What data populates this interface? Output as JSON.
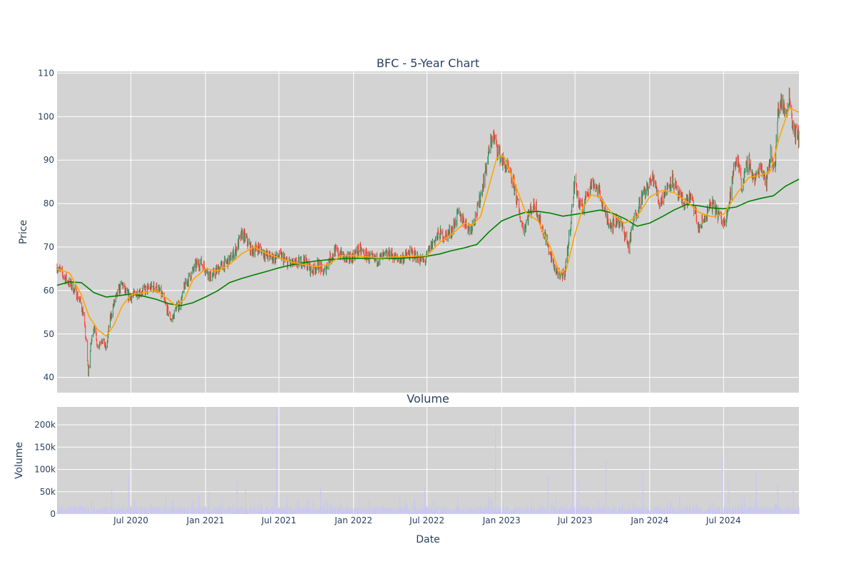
{
  "chart_data": [
    {
      "type": "candlestick",
      "title": "BFC - 5-Year Chart",
      "ylabel": "Price",
      "ylim": [
        36.5,
        110.4
      ],
      "y_ticks": [
        40,
        50,
        60,
        70,
        80,
        90,
        100,
        110
      ],
      "x_tick_labels": [
        "Jul 2020",
        "Jan 2021",
        "Jul 2021",
        "Jan 2022",
        "Jul 2022",
        "Jan 2023",
        "Jul 2023",
        "Jan 2024",
        "Jul 2024"
      ],
      "x_range": [
        "2020-01-01",
        "2025-01-03"
      ],
      "grid": true,
      "background": "#d3d3d3",
      "colors": {
        "up": "#2e8b57",
        "down": "#ff4136",
        "ma_short": "#ffa500",
        "ma_long": "#008000"
      },
      "price_path": [
        [
          "2020-01-01",
          65.5
        ],
        [
          "2020-01-20",
          63.0
        ],
        [
          "2020-02-10",
          60.5
        ],
        [
          "2020-02-25",
          58.0
        ],
        [
          "2020-03-05",
          55.0
        ],
        [
          "2020-03-12",
          49.0
        ],
        [
          "2020-03-18",
          41.0
        ],
        [
          "2020-03-25",
          48.0
        ],
        [
          "2020-04-01",
          52.0
        ],
        [
          "2020-04-10",
          47.0
        ],
        [
          "2020-04-20",
          49.0
        ],
        [
          "2020-05-01",
          46.5
        ],
        [
          "2020-05-10",
          53.0
        ],
        [
          "2020-05-20",
          57.0
        ],
        [
          "2020-06-01",
          60.0
        ],
        [
          "2020-06-10",
          61.5
        ],
        [
          "2020-06-20",
          59.0
        ],
        [
          "2020-07-01",
          58.5
        ],
        [
          "2020-07-15",
          59.5
        ],
        [
          "2020-08-01",
          60.0
        ],
        [
          "2020-08-15",
          60.5
        ],
        [
          "2020-09-01",
          61.0
        ],
        [
          "2020-09-15",
          59.0
        ],
        [
          "2020-10-01",
          55.0
        ],
        [
          "2020-10-10",
          53.0
        ],
        [
          "2020-10-20",
          56.0
        ],
        [
          "2020-11-01",
          57.0
        ],
        [
          "2020-11-10",
          61.0
        ],
        [
          "2020-11-25",
          63.5
        ],
        [
          "2020-12-10",
          66.0
        ],
        [
          "2020-12-20",
          66.5
        ],
        [
          "2021-01-01",
          65.0
        ],
        [
          "2021-01-15",
          63.0
        ],
        [
          "2021-02-01",
          65.0
        ],
        [
          "2021-02-15",
          66.0
        ],
        [
          "2021-03-01",
          67.0
        ],
        [
          "2021-03-15",
          69.0
        ],
        [
          "2021-04-01",
          73.0
        ],
        [
          "2021-04-10",
          72.0
        ],
        [
          "2021-04-25",
          69.0
        ],
        [
          "2021-05-10",
          70.0
        ],
        [
          "2021-06-01",
          68.0
        ],
        [
          "2021-06-20",
          67.5
        ],
        [
          "2021-07-05",
          68.0
        ],
        [
          "2021-07-20",
          66.5
        ],
        [
          "2021-08-10",
          66.0
        ],
        [
          "2021-09-01",
          67.0
        ],
        [
          "2021-09-20",
          64.5
        ],
        [
          "2021-10-05",
          66.0
        ],
        [
          "2021-10-20",
          64.0
        ],
        [
          "2021-11-01",
          67.0
        ],
        [
          "2021-11-15",
          69.0
        ],
        [
          "2021-12-01",
          68.5
        ],
        [
          "2021-12-15",
          67.0
        ],
        [
          "2022-01-01",
          68.0
        ],
        [
          "2022-01-15",
          69.5
        ],
        [
          "2022-02-01",
          68.0
        ],
        [
          "2022-02-20",
          67.0
        ],
        [
          "2022-03-10",
          67.5
        ],
        [
          "2022-04-01",
          68.5
        ],
        [
          "2022-04-20",
          67.0
        ],
        [
          "2022-05-10",
          68.0
        ],
        [
          "2022-05-25",
          68.5
        ],
        [
          "2022-06-10",
          67.5
        ],
        [
          "2022-06-25",
          66.5
        ],
        [
          "2022-07-05",
          69.0
        ],
        [
          "2022-07-15",
          71.0
        ],
        [
          "2022-08-01",
          73.0
        ],
        [
          "2022-08-15",
          72.5
        ],
        [
          "2022-09-01",
          74.0
        ],
        [
          "2022-09-15",
          77.5
        ],
        [
          "2022-10-01",
          76.0
        ],
        [
          "2022-10-15",
          74.0
        ],
        [
          "2022-11-01",
          78.0
        ],
        [
          "2022-11-15",
          84.0
        ],
        [
          "2022-12-01",
          92.0
        ],
        [
          "2022-12-10",
          96.0
        ],
        [
          "2022-12-20",
          93.0
        ],
        [
          "2023-01-01",
          90.0
        ],
        [
          "2023-01-15",
          88.0
        ],
        [
          "2023-02-01",
          84.0
        ],
        [
          "2023-02-15",
          77.0
        ],
        [
          "2023-02-25",
          74.0
        ],
        [
          "2023-03-10",
          78.0
        ],
        [
          "2023-03-25",
          80.0
        ],
        [
          "2023-04-05",
          76.0
        ],
        [
          "2023-04-20",
          72.0
        ],
        [
          "2023-05-01",
          68.0
        ],
        [
          "2023-05-15",
          64.5
        ],
        [
          "2023-05-25",
          63.0
        ],
        [
          "2023-06-05",
          64.0
        ],
        [
          "2023-06-15",
          71.0
        ],
        [
          "2023-06-25",
          80.0
        ],
        [
          "2023-07-01",
          86.0
        ],
        [
          "2023-07-10",
          80.0
        ],
        [
          "2023-07-20",
          79.0
        ],
        [
          "2023-08-01",
          83.0
        ],
        [
          "2023-08-15",
          85.0
        ],
        [
          "2023-09-01",
          82.0
        ],
        [
          "2023-09-15",
          77.0
        ],
        [
          "2023-10-01",
          75.0
        ],
        [
          "2023-10-15",
          76.5
        ],
        [
          "2023-11-01",
          73.0
        ],
        [
          "2023-11-10",
          70.0
        ],
        [
          "2023-11-25",
          77.0
        ],
        [
          "2023-12-10",
          81.0
        ],
        [
          "2024-01-01",
          84.5
        ],
        [
          "2024-01-10",
          86.0
        ],
        [
          "2024-01-25",
          80.0
        ],
        [
          "2024-02-10",
          83.0
        ],
        [
          "2024-02-25",
          86.0
        ],
        [
          "2024-03-10",
          82.0
        ],
        [
          "2024-03-25",
          80.0
        ],
        [
          "2024-04-10",
          81.5
        ],
        [
          "2024-04-20",
          79.0
        ],
        [
          "2024-05-01",
          74.0
        ],
        [
          "2024-05-15",
          76.5
        ],
        [
          "2024-06-01",
          80.0
        ],
        [
          "2024-06-15",
          78.0
        ],
        [
          "2024-07-01",
          75.5
        ],
        [
          "2024-07-15",
          80.0
        ],
        [
          "2024-07-25",
          87.0
        ],
        [
          "2024-08-05",
          91.0
        ],
        [
          "2024-08-15",
          84.0
        ],
        [
          "2024-09-01",
          90.0
        ],
        [
          "2024-09-15",
          85.0
        ],
        [
          "2024-10-01",
          89.0
        ],
        [
          "2024-10-15",
          85.0
        ],
        [
          "2024-10-25",
          91.5
        ],
        [
          "2024-11-05",
          88.0
        ],
        [
          "2024-11-12",
          101.0
        ],
        [
          "2024-11-20",
          104.0
        ],
        [
          "2024-12-01",
          100.0
        ],
        [
          "2024-12-10",
          105.0
        ],
        [
          "2024-12-20",
          97.0
        ],
        [
          "2025-01-03",
          95.0
        ]
      ],
      "ma_short_path": [
        [
          "2020-01-01",
          65.0
        ],
        [
          "2020-02-01",
          64.0
        ],
        [
          "2020-03-01",
          59.0
        ],
        [
          "2020-03-20",
          54.0
        ],
        [
          "2020-04-10",
          51.0
        ],
        [
          "2020-05-01",
          49.5
        ],
        [
          "2020-05-20",
          52.0
        ],
        [
          "2020-06-10",
          56.5
        ],
        [
          "2020-07-01",
          59.0
        ],
        [
          "2020-08-01",
          59.5
        ],
        [
          "2020-09-01",
          60.0
        ],
        [
          "2020-10-01",
          58.0
        ],
        [
          "2020-10-20",
          56.5
        ],
        [
          "2020-11-10",
          58.0
        ],
        [
          "2020-12-01",
          62.5
        ],
        [
          "2021-01-01",
          65.0
        ],
        [
          "2021-02-01",
          64.5
        ],
        [
          "2021-03-01",
          66.0
        ],
        [
          "2021-04-01",
          68.5
        ],
        [
          "2021-05-01",
          70.0
        ],
        [
          "2021-06-01",
          68.5
        ],
        [
          "2021-07-01",
          67.5
        ],
        [
          "2021-08-01",
          66.5
        ],
        [
          "2021-09-01",
          66.0
        ],
        [
          "2021-10-01",
          65.5
        ],
        [
          "2021-11-01",
          66.0
        ],
        [
          "2021-12-01",
          68.0
        ],
        [
          "2022-01-01",
          68.0
        ],
        [
          "2022-03-01",
          67.5
        ],
        [
          "2022-05-01",
          67.8
        ],
        [
          "2022-07-01",
          68.0
        ],
        [
          "2022-08-01",
          71.0
        ],
        [
          "2022-09-01",
          73.0
        ],
        [
          "2022-10-01",
          75.5
        ],
        [
          "2022-10-20",
          75.0
        ],
        [
          "2022-11-10",
          77.0
        ],
        [
          "2022-12-01",
          84.0
        ],
        [
          "2022-12-20",
          90.5
        ],
        [
          "2023-01-05",
          91.0
        ],
        [
          "2023-02-01",
          85.0
        ],
        [
          "2023-03-01",
          78.0
        ],
        [
          "2023-04-01",
          76.0
        ],
        [
          "2023-05-01",
          70.0
        ],
        [
          "2023-05-25",
          64.0
        ],
        [
          "2023-06-10",
          65.0
        ],
        [
          "2023-07-01",
          73.0
        ],
        [
          "2023-07-20",
          79.0
        ],
        [
          "2023-08-10",
          82.0
        ],
        [
          "2023-09-01",
          81.5
        ],
        [
          "2023-10-01",
          77.5
        ],
        [
          "2023-11-01",
          75.5
        ],
        [
          "2023-12-01",
          77.0
        ],
        [
          "2024-01-01",
          81.5
        ],
        [
          "2024-02-01",
          83.0
        ],
        [
          "2024-03-01",
          82.5
        ],
        [
          "2024-04-01",
          80.5
        ],
        [
          "2024-05-01",
          78.0
        ],
        [
          "2024-06-01",
          77.0
        ],
        [
          "2024-07-01",
          77.5
        ],
        [
          "2024-08-01",
          82.0
        ],
        [
          "2024-09-01",
          86.0
        ],
        [
          "2024-10-01",
          86.5
        ],
        [
          "2024-10-25",
          87.5
        ],
        [
          "2024-11-15",
          95.0
        ],
        [
          "2024-12-10",
          102.0
        ],
        [
          "2025-01-03",
          101.0
        ]
      ],
      "ma_long_path": [
        [
          "2020-01-01",
          61.2
        ],
        [
          "2020-02-01",
          62.0
        ],
        [
          "2020-03-01",
          61.8
        ],
        [
          "2020-04-01",
          59.5
        ],
        [
          "2020-05-01",
          58.5
        ],
        [
          "2020-06-01",
          58.8
        ],
        [
          "2020-07-01",
          59.2
        ],
        [
          "2020-08-01",
          58.7
        ],
        [
          "2020-09-01",
          58.0
        ],
        [
          "2020-10-01",
          57.0
        ],
        [
          "2020-11-01",
          56.5
        ],
        [
          "2020-12-01",
          57.2
        ],
        [
          "2021-01-01",
          58.5
        ],
        [
          "2021-02-01",
          60.0
        ],
        [
          "2021-03-01",
          61.8
        ],
        [
          "2021-04-01",
          62.8
        ],
        [
          "2021-05-01",
          63.6
        ],
        [
          "2021-06-01",
          64.4
        ],
        [
          "2021-07-01",
          65.2
        ],
        [
          "2021-08-01",
          65.9
        ],
        [
          "2021-09-01",
          66.4
        ],
        [
          "2021-10-01",
          66.8
        ],
        [
          "2021-11-01",
          67.1
        ],
        [
          "2021-12-01",
          67.3
        ],
        [
          "2022-01-01",
          67.4
        ],
        [
          "2022-03-01",
          67.4
        ],
        [
          "2022-05-01",
          67.4
        ],
        [
          "2022-06-01",
          67.6
        ],
        [
          "2022-07-01",
          67.9
        ],
        [
          "2022-08-01",
          68.4
        ],
        [
          "2022-09-01",
          69.2
        ],
        [
          "2022-10-01",
          69.8
        ],
        [
          "2022-11-01",
          70.6
        ],
        [
          "2022-12-01",
          73.5
        ],
        [
          "2023-01-01",
          76.0
        ],
        [
          "2023-02-01",
          77.2
        ],
        [
          "2023-03-01",
          78.0
        ],
        [
          "2023-04-01",
          78.2
        ],
        [
          "2023-05-01",
          77.8
        ],
        [
          "2023-06-01",
          77.1
        ],
        [
          "2023-07-01",
          77.5
        ],
        [
          "2023-08-01",
          78.0
        ],
        [
          "2023-09-01",
          78.5
        ],
        [
          "2023-10-01",
          77.8
        ],
        [
          "2023-11-01",
          76.5
        ],
        [
          "2023-12-01",
          74.8
        ],
        [
          "2024-01-01",
          75.5
        ],
        [
          "2024-02-01",
          77.0
        ],
        [
          "2024-03-01",
          78.5
        ],
        [
          "2024-04-01",
          79.8
        ],
        [
          "2024-05-01",
          79.5
        ],
        [
          "2024-06-01",
          79.0
        ],
        [
          "2024-07-01",
          78.8
        ],
        [
          "2024-08-01",
          79.2
        ],
        [
          "2024-09-01",
          80.5
        ],
        [
          "2024-10-01",
          81.2
        ],
        [
          "2024-11-01",
          81.8
        ],
        [
          "2024-12-01",
          84.0
        ],
        [
          "2025-01-03",
          85.6
        ]
      ]
    },
    {
      "type": "bar",
      "title": "Volume",
      "ylabel": "Volume",
      "xlabel": "Date",
      "ylim": [
        0,
        240000
      ],
      "y_ticks": [
        0,
        50000,
        100000,
        150000,
        200000
      ],
      "y_tick_labels": [
        "0",
        "50k",
        "100k",
        "150k",
        "200k"
      ],
      "x_tick_labels": [
        "Jul 2020",
        "Jan 2021",
        "Jul 2021",
        "Jan 2022",
        "Jul 2022",
        "Jan 2023",
        "Jul 2023",
        "Jan 2024",
        "Jul 2024"
      ],
      "x_range": [
        "2020-01-01",
        "2025-01-03"
      ],
      "grid": true,
      "background": "#d3d3d3",
      "bar_color": "#c9c6f2",
      "spikes": [
        [
          "2020-05-15",
          58000
        ],
        [
          "2020-06-25",
          90000
        ],
        [
          "2020-07-10",
          30000
        ],
        [
          "2020-09-25",
          38000
        ],
        [
          "2020-12-15",
          45000
        ],
        [
          "2021-01-10",
          50000
        ],
        [
          "2021-03-20",
          78000
        ],
        [
          "2021-04-10",
          60000
        ],
        [
          "2021-06-25",
          235000
        ],
        [
          "2021-10-12",
          58000
        ],
        [
          "2021-11-05",
          22000
        ],
        [
          "2022-06-25",
          60000
        ],
        [
          "2022-09-15",
          38000
        ],
        [
          "2022-12-17",
          195000
        ],
        [
          "2022-12-01",
          40000
        ],
        [
          "2023-04-25",
          85000
        ],
        [
          "2023-06-25",
          220000
        ],
        [
          "2023-07-10",
          80000
        ],
        [
          "2023-09-15",
          120000
        ],
        [
          "2023-12-15",
          90000
        ],
        [
          "2024-03-15",
          45000
        ],
        [
          "2024-06-28",
          130000
        ],
        [
          "2024-07-15",
          75000
        ],
        [
          "2024-09-20",
          95000
        ],
        [
          "2024-11-12",
          68000
        ],
        [
          "2024-12-20",
          55000
        ]
      ]
    }
  ]
}
